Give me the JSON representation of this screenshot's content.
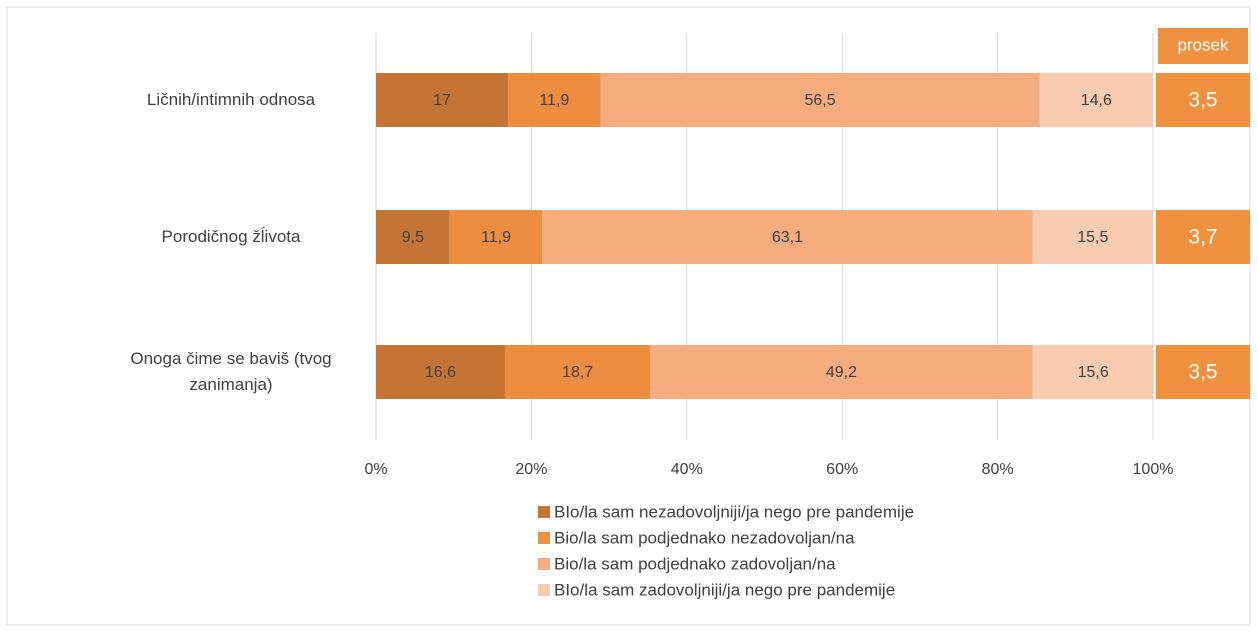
{
  "chart_data": {
    "type": "stacked_bar_horizontal",
    "categories": [
      "Ličnih/intimnih odnosa",
      "Porodičnog žĺivota",
      "Onoga čime se baviš (tvog zanimanja)"
    ],
    "series": [
      {
        "name": "BIo/la sam nezadovoljniji/ja nego pre pandemije",
        "color": "#c47535",
        "values": [
          17,
          9.5,
          16.6
        ],
        "value_labels": [
          "17",
          "9,5",
          "16,6"
        ]
      },
      {
        "name": "Bio/la sam podjednako nezadovoljan/na",
        "color": "#ed8d3f",
        "values": [
          11.9,
          11.9,
          18.7
        ],
        "value_labels": [
          "11,9",
          "11,9",
          "18,7"
        ]
      },
      {
        "name": "Bio/la sam podjednako zadovoljan/na",
        "color": "#f6ac7c",
        "values": [
          56.5,
          63.1,
          49.2
        ],
        "value_labels": [
          "56,5",
          "63,1",
          "49,2"
        ]
      },
      {
        "name": "BIo/la sam zadovoljniji/ja nego pre pandemije",
        "color": "#f9cbb0",
        "values": [
          14.6,
          15.5,
          15.6
        ],
        "value_labels": [
          "14,6",
          "15,5",
          "15,6"
        ]
      }
    ],
    "xlim": [
      0,
      100
    ],
    "xticks": [
      {
        "value": 0,
        "label": "0%"
      },
      {
        "value": 20,
        "label": "20%"
      },
      {
        "value": 40,
        "label": "40%"
      },
      {
        "value": 60,
        "label": "60%"
      },
      {
        "value": 80,
        "label": "80%"
      },
      {
        "value": 100,
        "label": "100%"
      }
    ],
    "grid": true,
    "legend": "bottom",
    "average": {
      "title": "prosek",
      "color": "#f0913f",
      "values": [
        3.5,
        3.7,
        3.5
      ],
      "value_labels": [
        "3,5",
        "3,7",
        "3,5"
      ]
    }
  }
}
